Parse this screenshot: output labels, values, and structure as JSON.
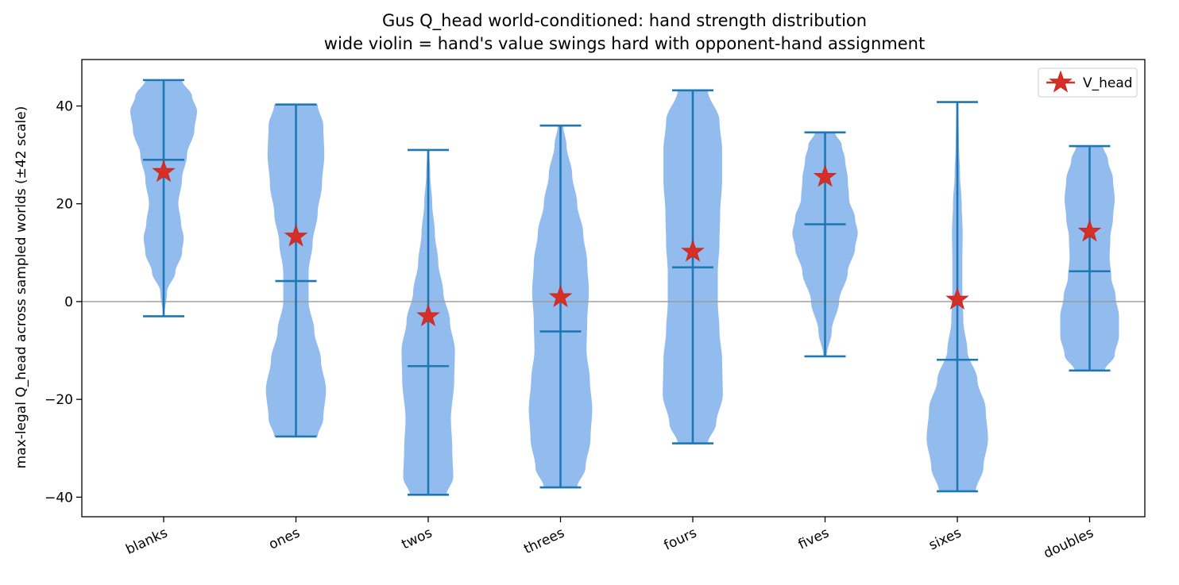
{
  "chart_data": {
    "type": "violin",
    "title": "Gus Q_head world-conditioned: hand strength distribution",
    "subtitle": "wide violin = hand's value swings hard with opponent-hand assignment",
    "ylabel": "max-legal Q_head across sampled worlds (±42 scale)",
    "xlabel": "",
    "ylim": [
      -44,
      49.5
    ],
    "yticks": [
      -40,
      -20,
      0,
      20,
      40
    ],
    "ytick_labels": [
      "−40",
      "−20",
      "0",
      "20",
      "40"
    ],
    "grid": false,
    "zero_line": true,
    "legend": {
      "position": "top-right",
      "entries": [
        {
          "label": "V_head",
          "marker": "star"
        }
      ]
    },
    "colors": {
      "violin": "#92bbee",
      "whisker": "#1f77b4",
      "star": "#d62f27",
      "star_edge": "#c7281f",
      "zero_line": "#999999"
    },
    "categories": [
      "blanks",
      "ones",
      "twos",
      "threes",
      "fours",
      "fives",
      "sixes",
      "doubles"
    ],
    "violins": [
      {
        "category": "blanks",
        "min": -3,
        "max": 45.3,
        "median": 29,
        "v_head": 26.5,
        "density": [
          [
            -3,
            0.02
          ],
          [
            2,
            0.1
          ],
          [
            6,
            0.35
          ],
          [
            10,
            0.55
          ],
          [
            13,
            0.6
          ],
          [
            16,
            0.52
          ],
          [
            20,
            0.44
          ],
          [
            25,
            0.55
          ],
          [
            30,
            0.7
          ],
          [
            35,
            0.92
          ],
          [
            39,
            1.0
          ],
          [
            42,
            0.85
          ],
          [
            45.3,
            0.55
          ]
        ]
      },
      {
        "category": "ones",
        "min": -27.6,
        "max": 40.3,
        "median": 4.2,
        "v_head": 13.3,
        "density": [
          [
            -27.6,
            0.65
          ],
          [
            -24,
            0.82
          ],
          [
            -18,
            0.9
          ],
          [
            -12,
            0.75
          ],
          [
            -6,
            0.55
          ],
          [
            0,
            0.38
          ],
          [
            6,
            0.38
          ],
          [
            12,
            0.5
          ],
          [
            18,
            0.65
          ],
          [
            24,
            0.78
          ],
          [
            30,
            0.85
          ],
          [
            36,
            0.82
          ],
          [
            40.3,
            0.65
          ]
        ]
      },
      {
        "category": "twos",
        "min": -39.5,
        "max": 31,
        "median": -13.2,
        "v_head": -3,
        "density": [
          [
            -39.5,
            0.55
          ],
          [
            -36,
            0.75
          ],
          [
            -30,
            0.72
          ],
          [
            -24,
            0.68
          ],
          [
            -16,
            0.78
          ],
          [
            -10,
            0.8
          ],
          [
            -4,
            0.65
          ],
          [
            2,
            0.45
          ],
          [
            8,
            0.3
          ],
          [
            14,
            0.2
          ],
          [
            20,
            0.12
          ],
          [
            26,
            0.06
          ],
          [
            31,
            0.03
          ]
        ]
      },
      {
        "category": "threes",
        "min": -38,
        "max": 36,
        "median": -6.1,
        "v_head": 0.9,
        "density": [
          [
            -38,
            0.5
          ],
          [
            -34,
            0.75
          ],
          [
            -28,
            0.9
          ],
          [
            -22,
            0.95
          ],
          [
            -16,
            0.88
          ],
          [
            -10,
            0.78
          ],
          [
            -4,
            0.8
          ],
          [
            2,
            0.85
          ],
          [
            8,
            0.8
          ],
          [
            14,
            0.68
          ],
          [
            20,
            0.5
          ],
          [
            26,
            0.35
          ],
          [
            32,
            0.18
          ],
          [
            36,
            0.08
          ]
        ]
      },
      {
        "category": "fours",
        "min": -29,
        "max": 43.2,
        "median": 7,
        "v_head": 10.2,
        "density": [
          [
            -29,
            0.45
          ],
          [
            -25,
            0.7
          ],
          [
            -19,
            0.9
          ],
          [
            -12,
            0.88
          ],
          [
            -6,
            0.8
          ],
          [
            0,
            0.75
          ],
          [
            6,
            0.75
          ],
          [
            12,
            0.8
          ],
          [
            18,
            0.82
          ],
          [
            25,
            0.88
          ],
          [
            31,
            0.88
          ],
          [
            37,
            0.8
          ],
          [
            43.2,
            0.45
          ]
        ]
      },
      {
        "category": "fives",
        "min": -11.2,
        "max": 34.6,
        "median": 15.8,
        "v_head": 25.5,
        "density": [
          [
            -11.2,
            0.05
          ],
          [
            -6,
            0.2
          ],
          [
            0,
            0.42
          ],
          [
            6,
            0.68
          ],
          [
            11,
            0.9
          ],
          [
            14,
            0.98
          ],
          [
            17,
            0.9
          ],
          [
            21,
            0.72
          ],
          [
            25,
            0.68
          ],
          [
            29,
            0.6
          ],
          [
            32,
            0.5
          ],
          [
            34.6,
            0.3
          ]
        ]
      },
      {
        "category": "sixes",
        "min": -38.8,
        "max": 40.8,
        "median": -11.9,
        "v_head": 0.4,
        "density": [
          [
            -38.8,
            0.55
          ],
          [
            -34,
            0.78
          ],
          [
            -28,
            0.92
          ],
          [
            -22,
            0.85
          ],
          [
            -16,
            0.6
          ],
          [
            -10,
            0.3
          ],
          [
            -4,
            0.18
          ],
          [
            2,
            0.15
          ],
          [
            8,
            0.15
          ],
          [
            14,
            0.16
          ],
          [
            20,
            0.13
          ],
          [
            26,
            0.08
          ],
          [
            32,
            0.05
          ],
          [
            36,
            0.04
          ],
          [
            40.8,
            0.03
          ]
        ]
      },
      {
        "category": "doubles",
        "min": -14.1,
        "max": 31.8,
        "median": 6.2,
        "v_head": 14.3,
        "density": [
          [
            -14.1,
            0.45
          ],
          [
            -11,
            0.75
          ],
          [
            -7,
            0.88
          ],
          [
            -3,
            0.88
          ],
          [
            1,
            0.78
          ],
          [
            5,
            0.65
          ],
          [
            9,
            0.6
          ],
          [
            13,
            0.62
          ],
          [
            17,
            0.7
          ],
          [
            21,
            0.75
          ],
          [
            25,
            0.7
          ],
          [
            29,
            0.55
          ],
          [
            31.8,
            0.4
          ]
        ]
      }
    ]
  }
}
